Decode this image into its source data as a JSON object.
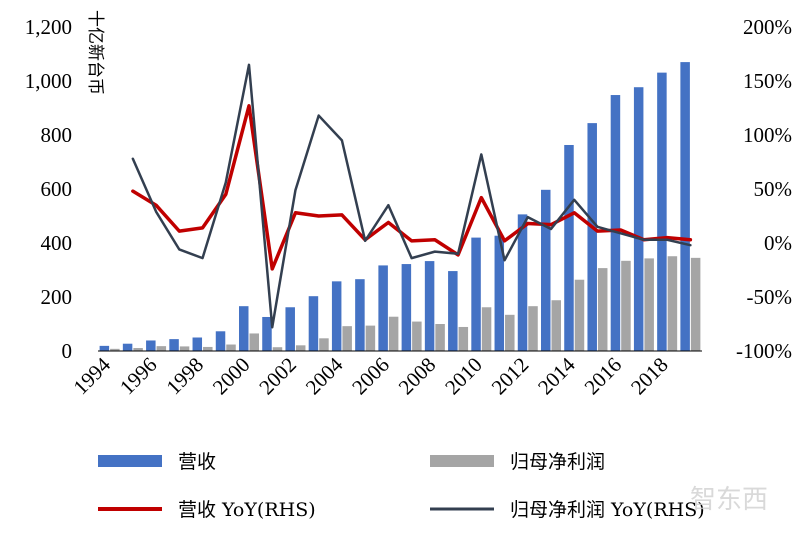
{
  "chart_data": {
    "type": "bar+line",
    "ylabel_left": "十亿新台币",
    "x_tick_labels": [
      "1994",
      "1996",
      "1998",
      "2000",
      "2002",
      "2004",
      "2006",
      "2008",
      "2010",
      "2012",
      "2014",
      "2016",
      "2018"
    ],
    "years": [
      1994,
      1995,
      1996,
      1997,
      1998,
      1999,
      2000,
      2001,
      2002,
      2003,
      2004,
      2005,
      2006,
      2007,
      2008,
      2009,
      2010,
      2011,
      2012,
      2013,
      2014,
      2015,
      2016,
      2017,
      2018,
      2019
    ],
    "left_axis": {
      "min": 0,
      "max": 1200,
      "ticks": [
        0,
        200,
        400,
        600,
        800,
        1000,
        1200
      ],
      "tick_labels": [
        "0",
        "200",
        "400",
        "600",
        "800",
        "1,000",
        "1,200"
      ]
    },
    "right_axis": {
      "min": -100,
      "max": 200,
      "ticks": [
        -100,
        -50,
        0,
        50,
        100,
        150,
        200
      ],
      "tick_labels": [
        "-100%",
        "-50%",
        "0%",
        "50%",
        "100%",
        "150%",
        "200%"
      ]
    },
    "series": [
      {
        "name": "营收",
        "type": "bar",
        "axis": "left",
        "color": "#4472C4",
        "values": [
          19,
          27,
          39,
          44,
          50,
          73,
          166,
          126,
          162,
          203,
          258,
          266,
          317,
          322,
          333,
          296,
          420,
          427,
          506,
          597,
          763,
          844,
          948,
          977,
          1031,
          1070
        ]
      },
      {
        "name": "归母净利润",
        "type": "bar",
        "axis": "left",
        "color": "#A5A5A5",
        "values": [
          8,
          11,
          18,
          17,
          15,
          24,
          65,
          14,
          21,
          47,
          92,
          94,
          127,
          109,
          100,
          89,
          162,
          134,
          166,
          188,
          264,
          307,
          334,
          343,
          351,
          345
        ]
      },
      {
        "name": "营收 YoY(RHS)",
        "type": "line",
        "axis": "right",
        "color": "#C00000",
        "values": [
          null,
          48,
          35,
          11,
          14,
          45,
          127,
          -24,
          28,
          25,
          26,
          3,
          19,
          2,
          3,
          -11,
          42,
          2,
          18,
          17,
          28,
          11,
          12,
          3,
          5,
          3
        ]
      },
      {
        "name": "归母净利润 YoY(RHS)",
        "type": "line",
        "axis": "right",
        "color": "#333F50",
        "values": [
          null,
          78,
          29,
          -6,
          -14,
          56,
          165,
          -78,
          49,
          118,
          95,
          2,
          35,
          -14,
          -8,
          -10,
          82,
          -16,
          24,
          13,
          40,
          15,
          9,
          3,
          3,
          -2
        ]
      }
    ],
    "legend": [
      {
        "label": "营收",
        "kind": "bar",
        "color": "#4472C4"
      },
      {
        "label": "归母净利润",
        "kind": "bar",
        "color": "#A5A5A5"
      },
      {
        "label": "营收 YoY(RHS)",
        "kind": "line",
        "color": "#C00000"
      },
      {
        "label": "归母净利润 YoY(RHS)",
        "kind": "line",
        "color": "#333F50"
      }
    ]
  },
  "watermark": "智东西"
}
